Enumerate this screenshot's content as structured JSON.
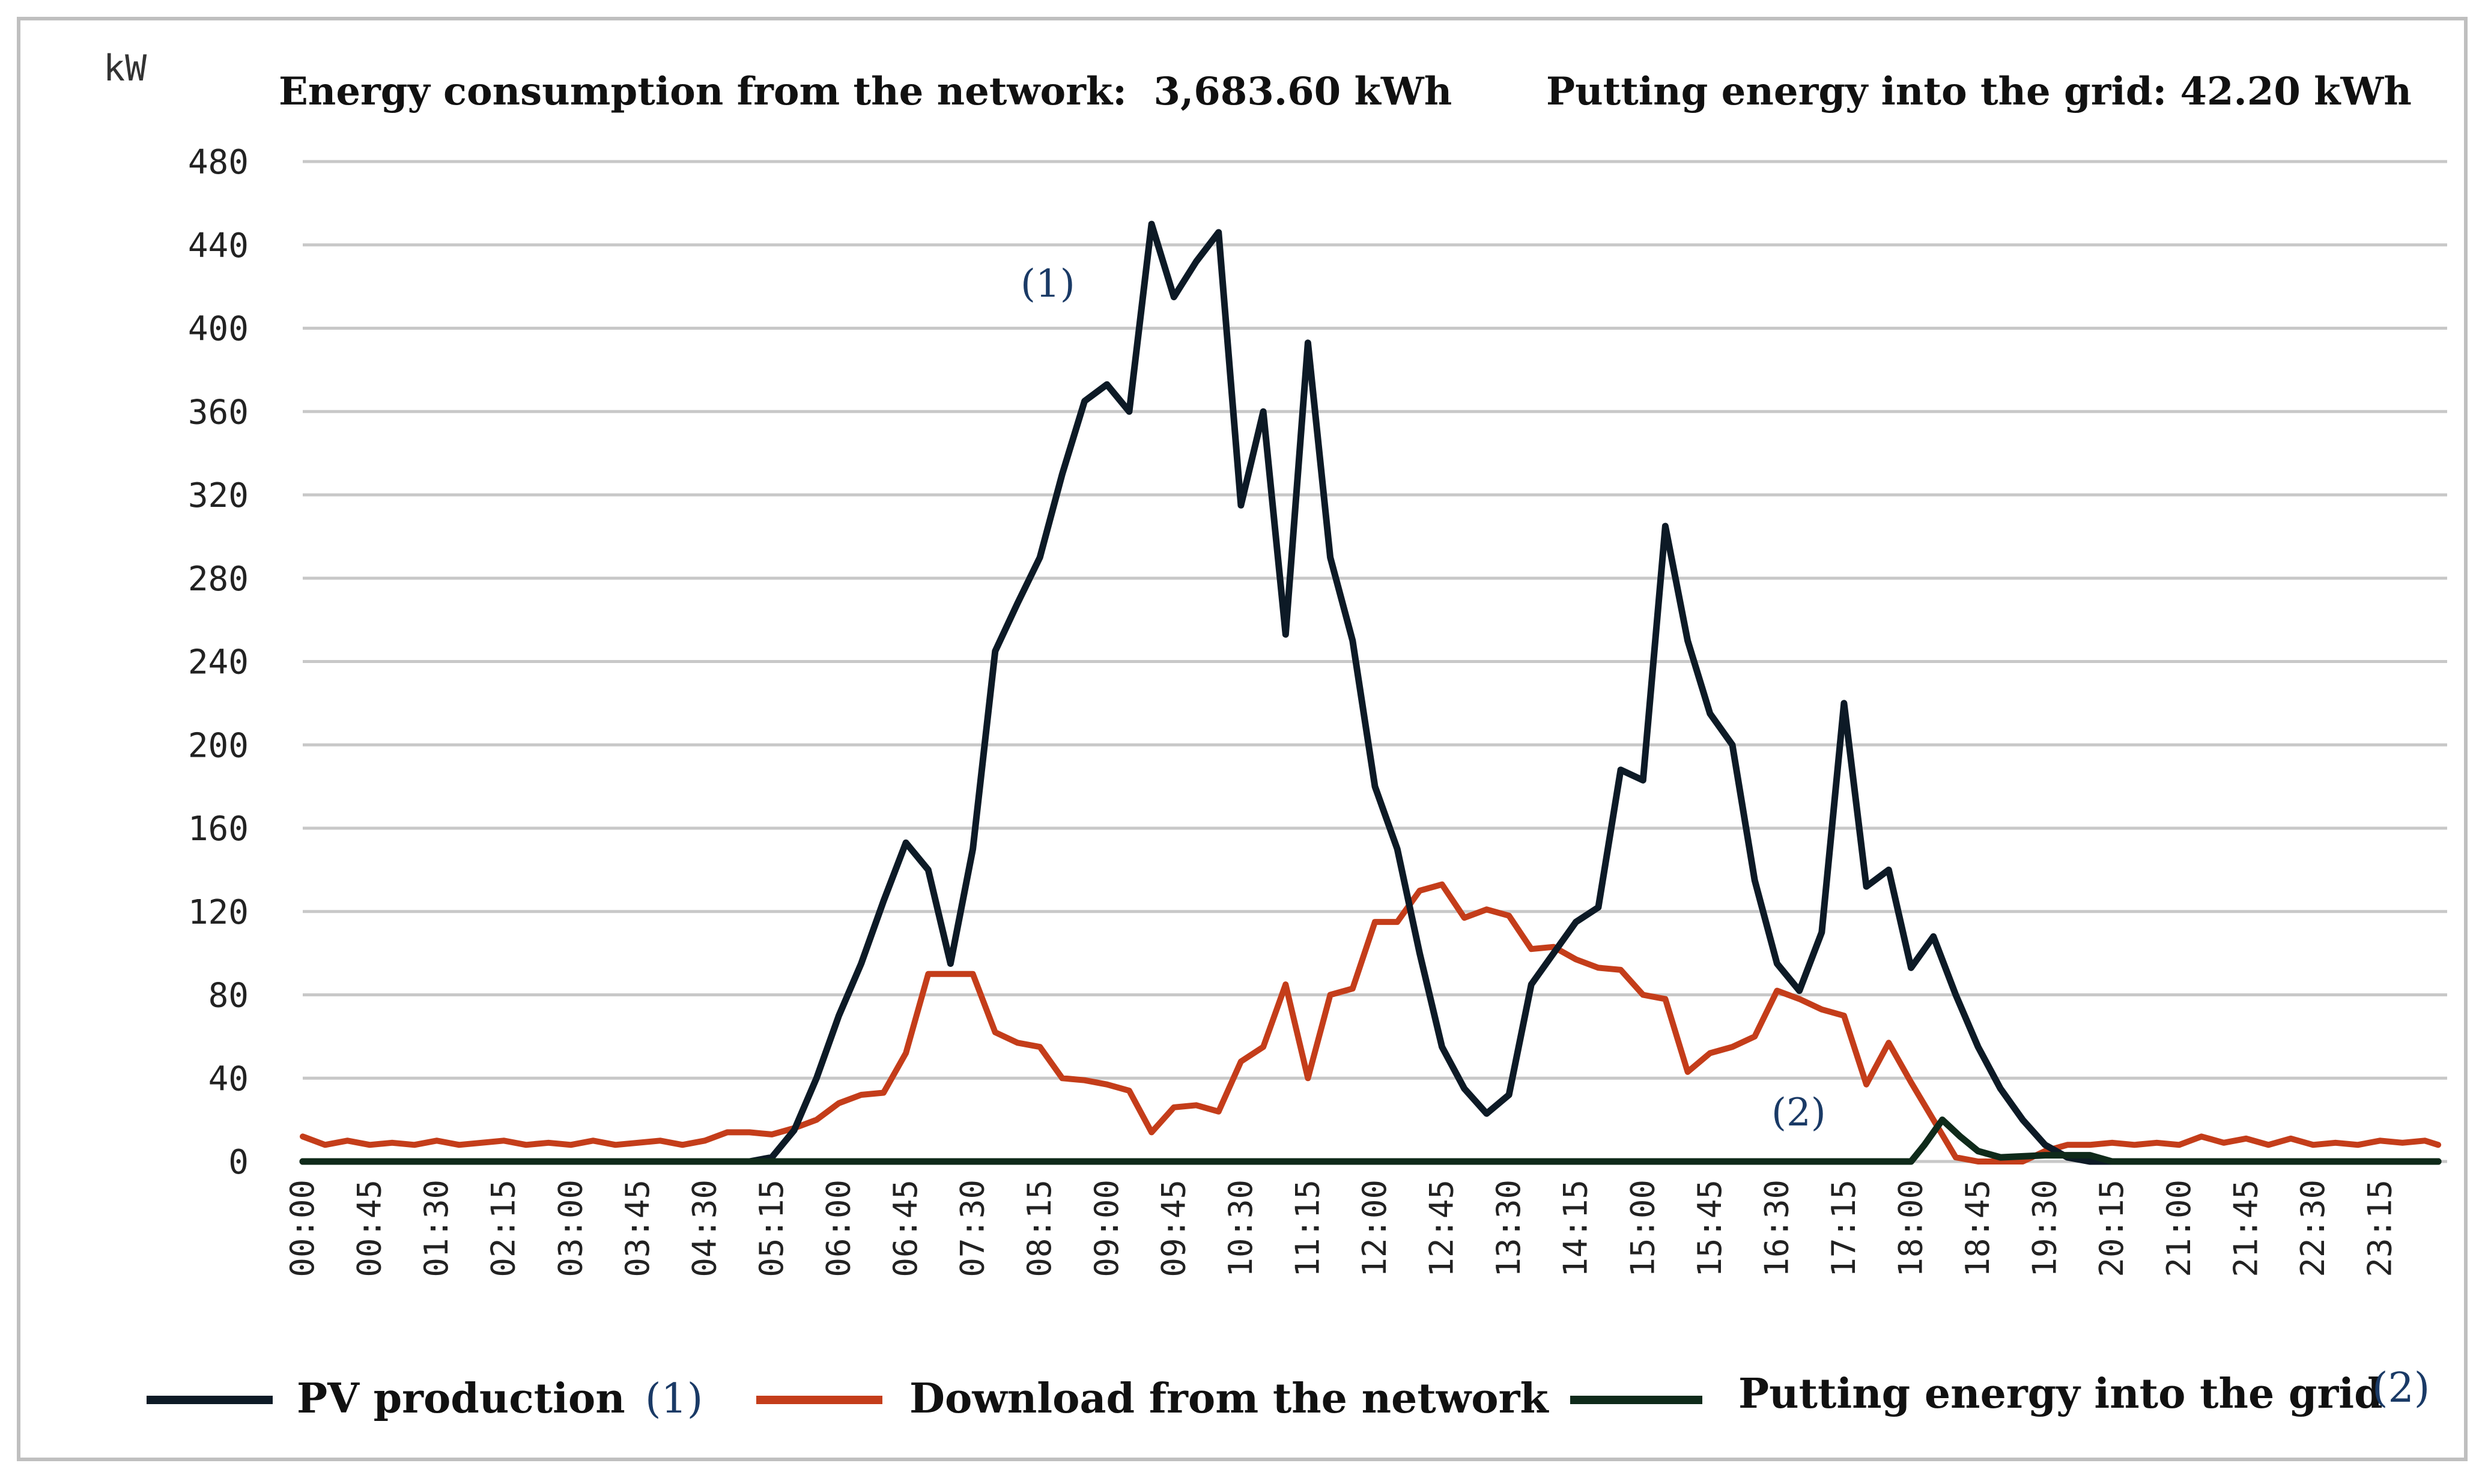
{
  "chart_data": {
    "type": "line",
    "ylabel": "kW",
    "ylim": [
      0,
      480
    ],
    "yticks": [
      0,
      40,
      80,
      120,
      160,
      200,
      240,
      280,
      320,
      360,
      400,
      440,
      480
    ],
    "grid": true,
    "legend_position": "bottom",
    "annotations": {
      "consumption": "Energy consumption from the network:  3,683.60 kWh",
      "feed_in": "Putting energy into the grid: 42.20 kWh",
      "marker_pv": "(1)",
      "marker_grid": "(2)"
    },
    "x_tick_labels": [
      "00:00",
      "00:45",
      "01:30",
      "02:15",
      "03:00",
      "03:45",
      "04:30",
      "05:15",
      "06:00",
      "06:45",
      "07:30",
      "08:15",
      "09:00",
      "09:45",
      "10:30",
      "11:15",
      "12:00",
      "12:45",
      "13:30",
      "14:15",
      "15:00",
      "15:45",
      "16:30",
      "17:15",
      "18:00",
      "18:45",
      "19:30",
      "20:15",
      "21:00",
      "21:45",
      "22:30",
      "23:15"
    ],
    "legend": [
      {
        "label": "PV production",
        "marker": "(1)",
        "color": "#0d1a26"
      },
      {
        "label": "Download from the network",
        "marker": "",
        "color": "#c43d1a"
      },
      {
        "label": "Putting energy into the grid",
        "marker": "(2)",
        "color": "#0f2a1a"
      }
    ],
    "series": [
      {
        "name": "PV production",
        "color": "#0d1a26",
        "points": [
          [
            0,
            0
          ],
          [
            5,
            0
          ],
          [
            5.25,
            2
          ],
          [
            5.5,
            15
          ],
          [
            5.75,
            40
          ],
          [
            6,
            70
          ],
          [
            6.25,
            95
          ],
          [
            6.5,
            125
          ],
          [
            6.75,
            153
          ],
          [
            7,
            140
          ],
          [
            7.25,
            95
          ],
          [
            7.5,
            150
          ],
          [
            7.75,
            245
          ],
          [
            8,
            268
          ],
          [
            8.25,
            290
          ],
          [
            8.5,
            330
          ],
          [
            8.75,
            365
          ],
          [
            9,
            373
          ],
          [
            9.25,
            360
          ],
          [
            9.5,
            450
          ],
          [
            9.75,
            415
          ],
          [
            10,
            432
          ],
          [
            10.25,
            446
          ],
          [
            10.5,
            315
          ],
          [
            10.75,
            360
          ],
          [
            11,
            253
          ],
          [
            11.25,
            393
          ],
          [
            11.5,
            290
          ],
          [
            11.75,
            250
          ],
          [
            12,
            180
          ],
          [
            12.25,
            150
          ],
          [
            12.5,
            100
          ],
          [
            12.75,
            55
          ],
          [
            13,
            35
          ],
          [
            13.25,
            23
          ],
          [
            13.5,
            32
          ],
          [
            13.75,
            85
          ],
          [
            14,
            100
          ],
          [
            14.25,
            115
          ],
          [
            14.5,
            122
          ],
          [
            14.75,
            188
          ],
          [
            15,
            183
          ],
          [
            15.25,
            305
          ],
          [
            15.5,
            250
          ],
          [
            15.75,
            215
          ],
          [
            16,
            200
          ],
          [
            16.25,
            135
          ],
          [
            16.5,
            95
          ],
          [
            16.75,
            82
          ],
          [
            17,
            110
          ],
          [
            17.25,
            220
          ],
          [
            17.5,
            132
          ],
          [
            17.75,
            140
          ],
          [
            18,
            93
          ],
          [
            18.25,
            108
          ],
          [
            18.5,
            80
          ],
          [
            18.75,
            55
          ],
          [
            19,
            35
          ],
          [
            19.25,
            20
          ],
          [
            19.5,
            8
          ],
          [
            19.75,
            2
          ],
          [
            20,
            0
          ],
          [
            23.9,
            0
          ]
        ]
      },
      {
        "name": "Download from the network",
        "color": "#c43d1a",
        "points": [
          [
            0,
            12
          ],
          [
            0.25,
            8
          ],
          [
            0.5,
            10
          ],
          [
            0.75,
            8
          ],
          [
            1,
            9
          ],
          [
            1.25,
            8
          ],
          [
            1.5,
            10
          ],
          [
            1.75,
            8
          ],
          [
            2,
            9
          ],
          [
            2.25,
            10
          ],
          [
            2.5,
            8
          ],
          [
            2.75,
            9
          ],
          [
            3,
            8
          ],
          [
            3.25,
            10
          ],
          [
            3.5,
            8
          ],
          [
            3.75,
            9
          ],
          [
            4,
            10
          ],
          [
            4.25,
            8
          ],
          [
            4.5,
            10
          ],
          [
            4.75,
            14
          ],
          [
            5,
            14
          ],
          [
            5.25,
            13
          ],
          [
            5.5,
            16
          ],
          [
            5.75,
            20
          ],
          [
            6,
            28
          ],
          [
            6.25,
            32
          ],
          [
            6.5,
            33
          ],
          [
            6.75,
            52
          ],
          [
            7,
            90
          ],
          [
            7.25,
            90
          ],
          [
            7.5,
            90
          ],
          [
            7.75,
            62
          ],
          [
            8,
            57
          ],
          [
            8.25,
            55
          ],
          [
            8.5,
            40
          ],
          [
            8.75,
            39
          ],
          [
            9,
            37
          ],
          [
            9.25,
            34
          ],
          [
            9.5,
            14
          ],
          [
            9.75,
            26
          ],
          [
            10,
            27
          ],
          [
            10.25,
            24
          ],
          [
            10.5,
            48
          ],
          [
            10.75,
            55
          ],
          [
            11,
            85
          ],
          [
            11.25,
            40
          ],
          [
            11.5,
            80
          ],
          [
            11.75,
            83
          ],
          [
            12,
            115
          ],
          [
            12.25,
            115
          ],
          [
            12.5,
            130
          ],
          [
            12.75,
            133
          ],
          [
            13,
            117
          ],
          [
            13.25,
            121
          ],
          [
            13.5,
            118
          ],
          [
            13.75,
            102
          ],
          [
            14,
            103
          ],
          [
            14.25,
            97
          ],
          [
            14.5,
            93
          ],
          [
            14.75,
            92
          ],
          [
            15,
            80
          ],
          [
            15.25,
            78
          ],
          [
            15.5,
            43
          ],
          [
            15.75,
            52
          ],
          [
            16,
            55
          ],
          [
            16.25,
            60
          ],
          [
            16.5,
            82
          ],
          [
            16.75,
            78
          ],
          [
            17,
            73
          ],
          [
            17.25,
            70
          ],
          [
            17.5,
            37
          ],
          [
            17.75,
            57
          ],
          [
            18,
            38
          ],
          [
            18.25,
            20
          ],
          [
            18.5,
            2
          ],
          [
            18.75,
            0
          ],
          [
            19.25,
            0
          ],
          [
            19.5,
            5
          ],
          [
            19.75,
            8
          ],
          [
            20,
            8
          ],
          [
            20.25,
            9
          ],
          [
            20.5,
            8
          ],
          [
            20.75,
            9
          ],
          [
            21,
            8
          ],
          [
            21.25,
            12
          ],
          [
            21.5,
            9
          ],
          [
            21.75,
            11
          ],
          [
            22,
            8
          ],
          [
            22.25,
            11
          ],
          [
            22.5,
            8
          ],
          [
            22.75,
            9
          ],
          [
            23,
            8
          ],
          [
            23.25,
            10
          ],
          [
            23.5,
            9
          ],
          [
            23.75,
            10
          ],
          [
            23.9,
            8
          ]
        ]
      },
      {
        "name": "Putting energy into the grid",
        "color": "#0f2a1a",
        "points": [
          [
            0,
            0
          ],
          [
            18,
            0
          ],
          [
            18.15,
            8
          ],
          [
            18.35,
            20
          ],
          [
            18.55,
            12
          ],
          [
            18.75,
            5
          ],
          [
            19,
            2
          ],
          [
            19.5,
            3
          ],
          [
            20,
            3
          ],
          [
            20.25,
            0
          ],
          [
            23.9,
            0
          ]
        ]
      }
    ]
  }
}
